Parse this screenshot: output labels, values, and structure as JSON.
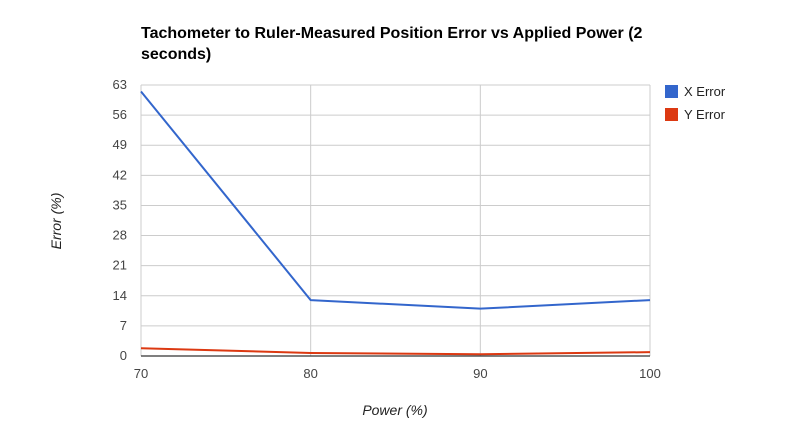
{
  "chart_data": {
    "type": "line",
    "title": "Tachometer to Ruler-Measured Position Error vs Applied Power (2 seconds)",
    "title_lines": [
      "Tachometer to Ruler-Measured Position Error vs Applied Power (2",
      "seconds)"
    ],
    "xlabel": "Power (%)",
    "ylabel": "Error (%)",
    "x": [
      70,
      80,
      90,
      100
    ],
    "x_ticks": [
      70,
      80,
      90,
      100
    ],
    "y_ticks": [
      0,
      7,
      14,
      21,
      28,
      35,
      42,
      49,
      56,
      63
    ],
    "xlim": [
      70,
      100
    ],
    "ylim": [
      0,
      63
    ],
    "grid": true,
    "legend_position": "right",
    "series": [
      {
        "name": "X Error",
        "color": "#3366cc",
        "values": [
          61.5,
          13.0,
          11.0,
          13.0
        ]
      },
      {
        "name": "Y Error",
        "color": "#dc3912",
        "values": [
          1.8,
          0.7,
          0.4,
          0.9
        ]
      }
    ]
  }
}
